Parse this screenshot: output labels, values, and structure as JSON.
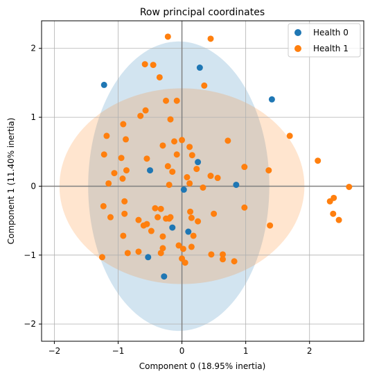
{
  "chart_data": {
    "type": "scatter",
    "title": "Row principal coordinates",
    "xlabel": "Component 0 (18.95% inertia)",
    "ylabel": "Component 1 (11.40% inertia)",
    "xlim": [
      -2.2,
      2.85
    ],
    "ylim": [
      -2.25,
      2.4
    ],
    "xticks": [
      -2,
      -1,
      0,
      1,
      2
    ],
    "yticks": [
      -2,
      -1,
      0,
      1,
      2
    ],
    "xtick_labels": [
      "−2",
      "−1",
      "0",
      "1",
      "2"
    ],
    "ytick_labels": [
      "−2",
      "−1",
      "0",
      "1",
      "2"
    ],
    "grid": true,
    "legend_position": "top-right",
    "series": [
      {
        "name": "Health 0",
        "color": "#1f77b4",
        "ellipse": {
          "cx": -0.05,
          "cy": 0.0,
          "rx": 1.42,
          "ry": 2.1,
          "alpha": 0.2
        },
        "points": [
          [
            -1.22,
            1.47
          ],
          [
            0.28,
            1.72
          ],
          [
            1.41,
            1.26
          ],
          [
            -0.5,
            0.23
          ],
          [
            0.25,
            0.35
          ],
          [
            0.03,
            -0.05
          ],
          [
            0.85,
            0.02
          ],
          [
            0.1,
            -0.66
          ],
          [
            -0.15,
            -0.6
          ],
          [
            -0.53,
            -1.03
          ],
          [
            -0.28,
            -1.31
          ]
        ]
      },
      {
        "name": "Health 1",
        "color": "#ff7f0e",
        "ellipse": {
          "cx": 0.0,
          "cy": 0.0,
          "rx": 1.92,
          "ry": 1.42,
          "alpha": 0.2
        },
        "points": [
          [
            -0.22,
            2.17
          ],
          [
            0.45,
            2.14
          ],
          [
            -0.58,
            1.77
          ],
          [
            -0.45,
            1.76
          ],
          [
            -0.35,
            1.58
          ],
          [
            0.35,
            1.46
          ],
          [
            -0.25,
            1.24
          ],
          [
            -0.08,
            1.24
          ],
          [
            -0.57,
            1.1
          ],
          [
            -0.65,
            1.02
          ],
          [
            -0.18,
            0.97
          ],
          [
            -0.92,
            0.9
          ],
          [
            -1.18,
            0.73
          ],
          [
            -0.88,
            0.68
          ],
          [
            -0.3,
            0.59
          ],
          [
            -0.12,
            0.65
          ],
          [
            0.0,
            0.67
          ],
          [
            0.72,
            0.66
          ],
          [
            1.69,
            0.73
          ],
          [
            0.12,
            0.57
          ],
          [
            -1.22,
            0.46
          ],
          [
            -0.95,
            0.41
          ],
          [
            -0.55,
            0.4
          ],
          [
            -0.08,
            0.46
          ],
          [
            0.16,
            0.45
          ],
          [
            -0.22,
            0.29
          ],
          [
            -0.87,
            0.23
          ],
          [
            -1.06,
            0.19
          ],
          [
            -0.15,
            0.21
          ],
          [
            0.23,
            0.25
          ],
          [
            0.98,
            0.28
          ],
          [
            1.36,
            0.23
          ],
          [
            2.13,
            0.37
          ],
          [
            -0.93,
            0.11
          ],
          [
            0.08,
            0.13
          ],
          [
            0.45,
            0.15
          ],
          [
            0.56,
            0.12
          ],
          [
            -1.15,
            0.04
          ],
          [
            -0.2,
            0.02
          ],
          [
            0.12,
            0.04
          ],
          [
            0.33,
            -0.02
          ],
          [
            2.62,
            -0.01
          ],
          [
            -1.23,
            -0.29
          ],
          [
            -0.9,
            -0.22
          ],
          [
            -0.42,
            -0.32
          ],
          [
            -0.33,
            -0.33
          ],
          [
            -0.38,
            -0.45
          ],
          [
            -0.25,
            -0.47
          ],
          [
            -0.2,
            -0.47
          ],
          [
            0.13,
            -0.37
          ],
          [
            -1.12,
            -0.45
          ],
          [
            -0.9,
            -0.4
          ],
          [
            -0.55,
            -0.55
          ],
          [
            0.15,
            -0.46
          ],
          [
            0.25,
            -0.51
          ],
          [
            0.5,
            -0.4
          ],
          [
            0.98,
            -0.31
          ],
          [
            2.32,
            -0.22
          ],
          [
            2.38,
            -0.17
          ],
          [
            2.37,
            -0.4
          ],
          [
            2.46,
            -0.49
          ],
          [
            1.38,
            -0.57
          ],
          [
            -0.6,
            -0.57
          ],
          [
            -0.68,
            -0.49
          ],
          [
            -0.48,
            -0.65
          ],
          [
            -0.3,
            -0.73
          ],
          [
            -0.18,
            -0.45
          ],
          [
            0.18,
            -0.72
          ],
          [
            -0.92,
            -0.72
          ],
          [
            -0.3,
            -0.9
          ],
          [
            -0.05,
            -0.86
          ],
          [
            0.02,
            -0.91
          ],
          [
            0.15,
            -0.88
          ],
          [
            -0.85,
            -0.97
          ],
          [
            -0.68,
            -0.95
          ],
          [
            -0.33,
            -0.97
          ],
          [
            -1.25,
            -1.03
          ],
          [
            0.0,
            -1.05
          ],
          [
            0.05,
            -1.11
          ],
          [
            0.46,
            -0.99
          ],
          [
            0.64,
            -0.99
          ],
          [
            0.64,
            -1.06
          ],
          [
            0.82,
            -1.09
          ]
        ]
      }
    ]
  }
}
